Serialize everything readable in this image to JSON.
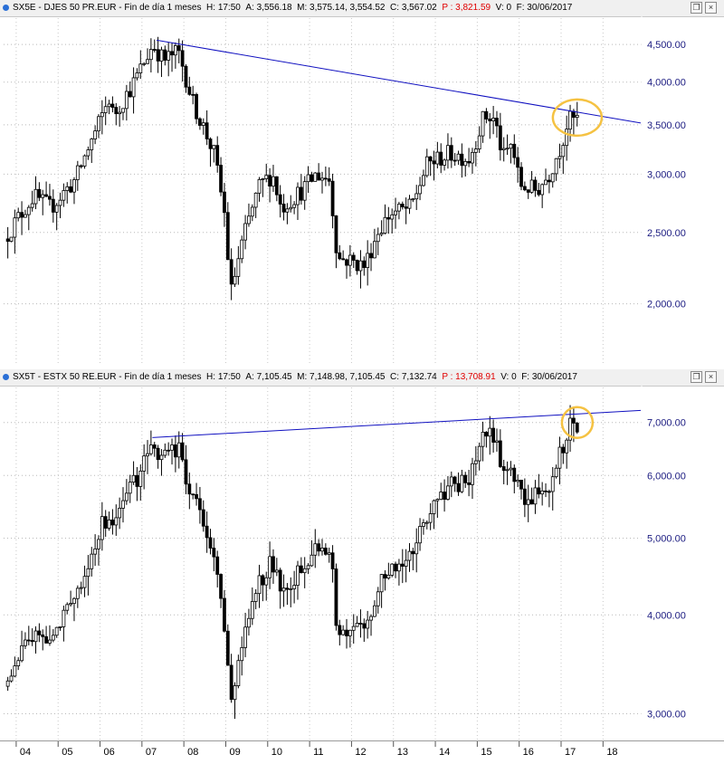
{
  "panels": [
    {
      "symbol": "SX5E",
      "sep": "-",
      "name": "DJES 50 PR.EUR",
      "period": "Fin de día 1 meses",
      "h_label": "H:",
      "h_value": "17:50",
      "a_label": "A:",
      "a_value": "3,556.18",
      "m_label": "M:",
      "m_value": "3,575.14",
      "m2_value": "3,554.52",
      "c_label": "C:",
      "c_value": "3,567.02",
      "p_label": "P :",
      "p_value": "3,821.59",
      "v_label": "V:",
      "v_value": "0",
      "f_label": "F:",
      "f_value": "30/06/2017"
    },
    {
      "symbol": "SX5T",
      "sep": "-",
      "name": "ESTX 50 RE.EUR",
      "period": "Fin de día 1 meses",
      "h_label": "H:",
      "h_value": "17:50",
      "a_label": "A:",
      "a_value": "7,105.45",
      "m_label": "M:",
      "m_value": "7,148.98",
      "m2_value": "7,105.45",
      "c_label": "C:",
      "c_value": "7,132.74",
      "p_label": "P :",
      "p_value": "13,708.91",
      "v_label": "V:",
      "v_value": "0",
      "f_label": "F:",
      "f_value": "30/06/2017"
    }
  ],
  "window_buttons": {
    "restore": "❐",
    "close": "×"
  },
  "colors": {
    "price_label": "#1a1a80",
    "trendline": "#1010c0",
    "highlight": "#f5c242",
    "bars": "#000000"
  },
  "chart_data": [
    {
      "type": "candlestick",
      "symbol": "SX5E",
      "scale": "log",
      "ylim": [
        1700,
        4750
      ],
      "y_ticks": [
        "4,500.00",
        "4,000.00",
        "3,500.00",
        "3,000.00",
        "2,500.00",
        "2,000.00"
      ],
      "y_tick_values": [
        4500,
        4000,
        3500,
        3000,
        2500,
        2000
      ],
      "x_range": [
        2003.7,
        2018.9
      ],
      "keypoints": [
        [
          2003.8,
          2450
        ],
        [
          2004.5,
          2800
        ],
        [
          2004.9,
          2700
        ],
        [
          2005.5,
          2950
        ],
        [
          2006.0,
          3450
        ],
        [
          2006.3,
          3800
        ],
        [
          2006.4,
          3600
        ],
        [
          2006.9,
          4000
        ],
        [
          2007.35,
          4500
        ],
        [
          2007.6,
          4280
        ],
        [
          2007.95,
          4400
        ],
        [
          2008.3,
          3750
        ],
        [
          2008.8,
          3200
        ],
        [
          2009.05,
          2650
        ],
        [
          2009.2,
          2060
        ],
        [
          2009.5,
          2450
        ],
        [
          2009.9,
          2900
        ],
        [
          2010.2,
          3000
        ],
        [
          2010.4,
          2700
        ],
        [
          2010.9,
          2850
        ],
        [
          2011.25,
          3000
        ],
        [
          2011.55,
          2950
        ],
        [
          2011.75,
          2300
        ],
        [
          2011.95,
          2300
        ],
        [
          2012.4,
          2250
        ],
        [
          2012.7,
          2500
        ],
        [
          2013.0,
          2650
        ],
        [
          2013.5,
          2700
        ],
        [
          2013.9,
          3100
        ],
        [
          2014.45,
          3200
        ],
        [
          2014.9,
          3150
        ],
        [
          2015.25,
          3600
        ],
        [
          2015.5,
          3550
        ],
        [
          2015.7,
          3150
        ],
        [
          2015.9,
          3300
        ],
        [
          2016.1,
          2900
        ],
        [
          2016.5,
          2850
        ],
        [
          2016.8,
          3000
        ],
        [
          2017.1,
          3300
        ],
        [
          2017.25,
          3550
        ],
        [
          2017.38,
          3560
        ]
      ],
      "trendline": [
        [
          2007.35,
          4560
        ],
        [
          2018.9,
          3520
        ]
      ],
      "highlight_center": [
        2017.3,
        3580
      ]
    },
    {
      "type": "candlestick",
      "symbol": "SX5T",
      "scale": "log",
      "ylim": [
        2850,
        7550
      ],
      "y_ticks": [
        "7,000.00",
        "6,000.00",
        "5,000.00",
        "4,000.00",
        "3,000.00"
      ],
      "y_tick_values": [
        7000,
        6000,
        5000,
        4000,
        3000
      ],
      "x_range": [
        2003.7,
        2018.9
      ],
      "keypoints": [
        [
          2003.8,
          3250
        ],
        [
          2004.5,
          3800
        ],
        [
          2004.9,
          3700
        ],
        [
          2005.5,
          4200
        ],
        [
          2006.0,
          5000
        ],
        [
          2006.3,
          5400
        ],
        [
          2006.4,
          5200
        ],
        [
          2006.9,
          5900
        ],
        [
          2007.35,
          6500
        ],
        [
          2007.6,
          6400
        ],
        [
          2007.95,
          6500
        ],
        [
          2008.3,
          5600
        ],
        [
          2008.8,
          4800
        ],
        [
          2009.05,
          3900
        ],
        [
          2009.2,
          3000
        ],
        [
          2009.5,
          3700
        ],
        [
          2009.9,
          4400
        ],
        [
          2010.2,
          4700
        ],
        [
          2010.4,
          4300
        ],
        [
          2010.9,
          4600
        ],
        [
          2011.25,
          4950
        ],
        [
          2011.55,
          4900
        ],
        [
          2011.75,
          3800
        ],
        [
          2011.95,
          3850
        ],
        [
          2012.4,
          3900
        ],
        [
          2012.7,
          4300
        ],
        [
          2013.0,
          4600
        ],
        [
          2013.5,
          4700
        ],
        [
          2013.9,
          5400
        ],
        [
          2014.45,
          5800
        ],
        [
          2014.9,
          5900
        ],
        [
          2015.25,
          6800
        ],
        [
          2015.5,
          6700
        ],
        [
          2015.7,
          6000
        ],
        [
          2015.9,
          6300
        ],
        [
          2016.1,
          5600
        ],
        [
          2016.5,
          5700
        ],
        [
          2016.8,
          5900
        ],
        [
          2017.1,
          6500
        ],
        [
          2017.25,
          6900
        ],
        [
          2017.38,
          7000
        ]
      ],
      "trendline": [
        [
          2007.25,
          6700
        ],
        [
          2018.9,
          7250
        ]
      ],
      "highlight_center": [
        2017.3,
        7000
      ]
    }
  ],
  "x_axis": {
    "labels": [
      "04",
      "05",
      "06",
      "07",
      "08",
      "09",
      "10",
      "11",
      "12",
      "13",
      "14",
      "15",
      "16",
      "17",
      "18"
    ]
  }
}
